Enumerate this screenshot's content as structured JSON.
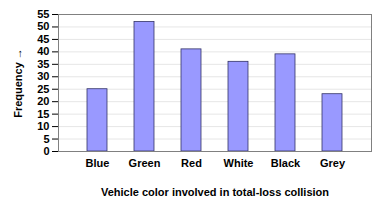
{
  "chart_data": {
    "type": "bar",
    "categories": [
      "Blue",
      "Green",
      "Red",
      "White",
      "Black",
      "Grey"
    ],
    "values": [
      25,
      52,
      41,
      36,
      39,
      23
    ],
    "color": "#9999ff",
    "xlabel": "Vehicle color involved in total-loss collision",
    "ylabel": "Frequency",
    "ylim": [
      0,
      55
    ],
    "yticks": [
      0,
      5,
      10,
      15,
      20,
      25,
      30,
      35,
      40,
      45,
      50,
      55
    ],
    "grid": true
  }
}
